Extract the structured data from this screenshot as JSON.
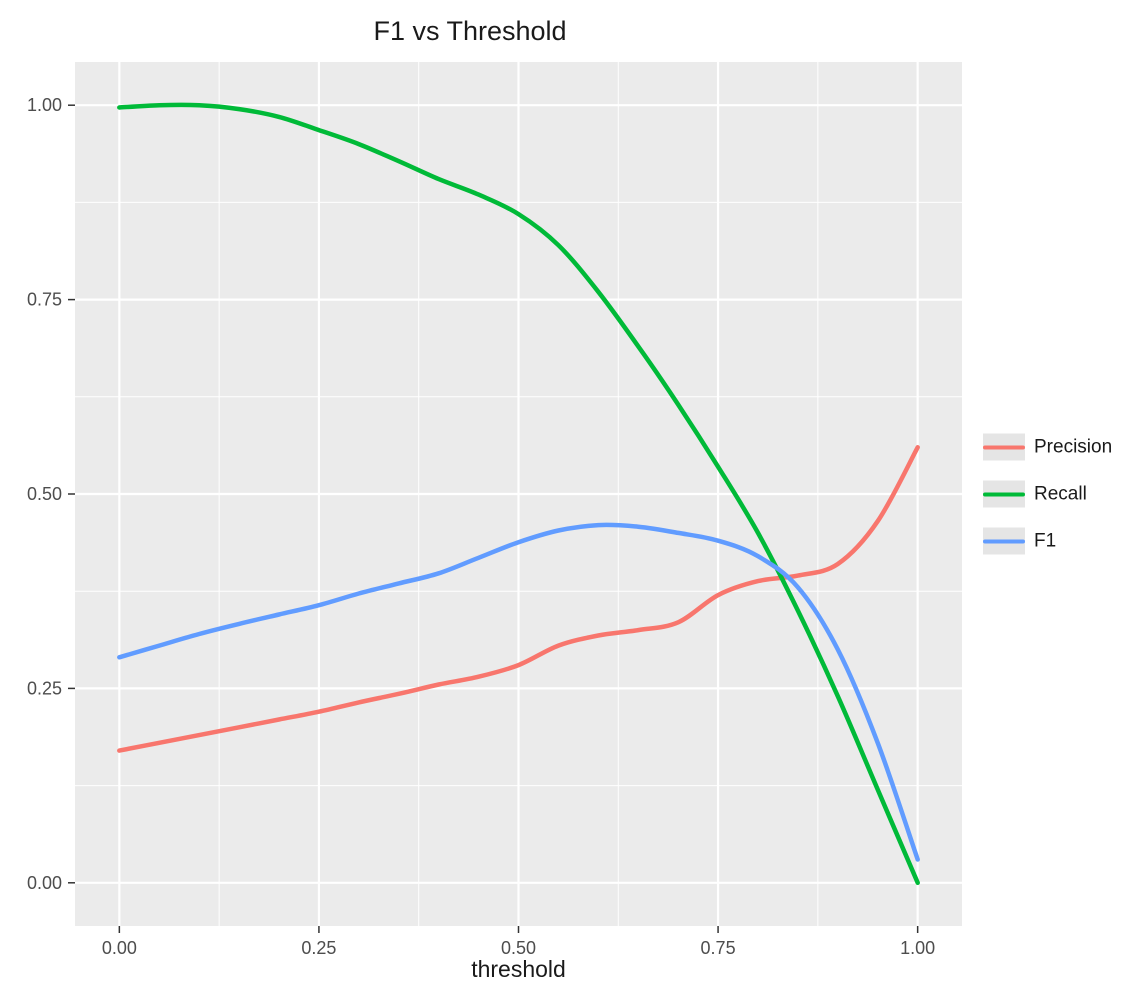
{
  "chart_data": {
    "type": "line",
    "title": "F1 vs Threshold",
    "xlabel": "threshold",
    "ylabel": "",
    "xlim": [
      0,
      1
    ],
    "ylim": [
      0,
      1
    ],
    "x_tick_values": [
      0,
      0.25,
      0.5,
      0.75,
      1
    ],
    "x_tick_labels": [
      "0.00",
      "0.25",
      "0.50",
      "0.75",
      "1.00"
    ],
    "y_tick_values": [
      0,
      0.25,
      0.5,
      0.75,
      1
    ],
    "y_tick_labels": [
      "0.00",
      "0.25",
      "0.50",
      "0.75",
      "1.00"
    ],
    "minor_tick_values": [
      0.125,
      0.375,
      0.625,
      0.875
    ],
    "grid": true,
    "legend_position": "right",
    "x": [
      0,
      0.05,
      0.1,
      0.15,
      0.2,
      0.25,
      0.3,
      0.35,
      0.4,
      0.45,
      0.5,
      0.55,
      0.6,
      0.65,
      0.7,
      0.75,
      0.8,
      0.85,
      0.9,
      0.95,
      1
    ],
    "series": [
      {
        "name": "Precision",
        "color": "#F8766D",
        "values": [
          0.17,
          0.18,
          0.19,
          0.2,
          0.21,
          0.22,
          0.232,
          0.243,
          0.255,
          0.265,
          0.28,
          0.305,
          0.318,
          0.325,
          0.335,
          0.37,
          0.388,
          0.395,
          0.41,
          0.465,
          0.56
        ]
      },
      {
        "name": "Recall",
        "color": "#00BA38",
        "values": [
          0.997,
          1.0,
          1.0,
          0.995,
          0.985,
          0.968,
          0.95,
          0.928,
          0.905,
          0.885,
          0.86,
          0.82,
          0.76,
          0.69,
          0.615,
          0.535,
          0.45,
          0.35,
          0.24,
          0.12,
          0.0
        ]
      },
      {
        "name": "F1",
        "color": "#619CFF",
        "values": [
          0.29,
          0.305,
          0.32,
          0.333,
          0.345,
          0.357,
          0.372,
          0.385,
          0.398,
          0.418,
          0.438,
          0.453,
          0.46,
          0.458,
          0.45,
          0.44,
          0.42,
          0.38,
          0.3,
          0.18,
          0.03
        ]
      }
    ],
    "style": {
      "panel_bg": "#EBEBEB",
      "grid_color": "#FFFFFF",
      "axis_text_color": "#4D4D4D",
      "tick_color": "#333333",
      "title_color": "#1a1a1a",
      "legend_key_bg": "#E5E5E5"
    }
  }
}
